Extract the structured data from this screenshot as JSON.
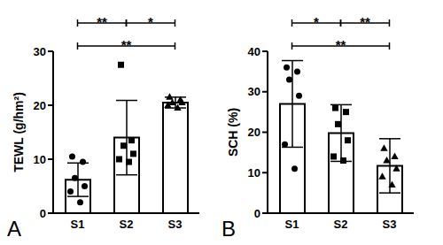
{
  "chart_data": [
    {
      "type": "bar",
      "panel_label": "A",
      "y_label": "TEWL (g/hm²)",
      "categories": [
        "S1",
        "S2",
        "S3"
      ],
      "values": [
        6.2,
        14.0,
        20.5
      ],
      "error": [
        3.1,
        6.9,
        1.0
      ],
      "color": "#ffffff",
      "points": [
        {
          "marker": "circle",
          "color": "#000000",
          "values": [
            10.5,
            9.5,
            6.5,
            5,
            4,
            2
          ]
        },
        {
          "marker": "square",
          "color": "#000000",
          "values": [
            27.5,
            13.5,
            12.5,
            11,
            10,
            9.5
          ]
        },
        {
          "marker": "triangle",
          "color": "#000000",
          "values": [
            21.5,
            21,
            20.5,
            20.5,
            20,
            19.5
          ]
        }
      ],
      "ylim": [
        0,
        30
      ],
      "yticks": [
        0,
        10,
        20,
        30
      ],
      "annotations": [
        {
          "from": "S1",
          "to": "S2",
          "text": "**"
        },
        {
          "from": "S2",
          "to": "S3",
          "text": "*"
        },
        {
          "from": "S1",
          "to": "S3",
          "text": "**"
        }
      ]
    },
    {
      "type": "bar",
      "panel_label": "B",
      "y_label": "SCH (%)",
      "categories": [
        "S1",
        "S2",
        "S3"
      ],
      "values": [
        27.0,
        19.8,
        11.7
      ],
      "error": [
        10.7,
        7.0,
        6.7
      ],
      "color": "#ffffff",
      "points": [
        {
          "marker": "circle",
          "color": "#000000",
          "values": [
            36,
            35,
            33,
            29,
            17,
            11
          ]
        },
        {
          "marker": "square",
          "color": "#000000",
          "values": [
            26,
            25,
            22,
            18,
            14,
            13
          ]
        },
        {
          "marker": "triangle",
          "color": "#000000",
          "values": [
            16,
            14,
            13,
            11,
            9,
            7
          ]
        }
      ],
      "ylim": [
        0,
        40
      ],
      "yticks": [
        0,
        10,
        20,
        30,
        40
      ],
      "annotations": [
        {
          "from": "S1",
          "to": "S2",
          "text": "*"
        },
        {
          "from": "S2",
          "to": "S3",
          "text": "**"
        },
        {
          "from": "S1",
          "to": "S3",
          "text": "**"
        }
      ]
    }
  ]
}
